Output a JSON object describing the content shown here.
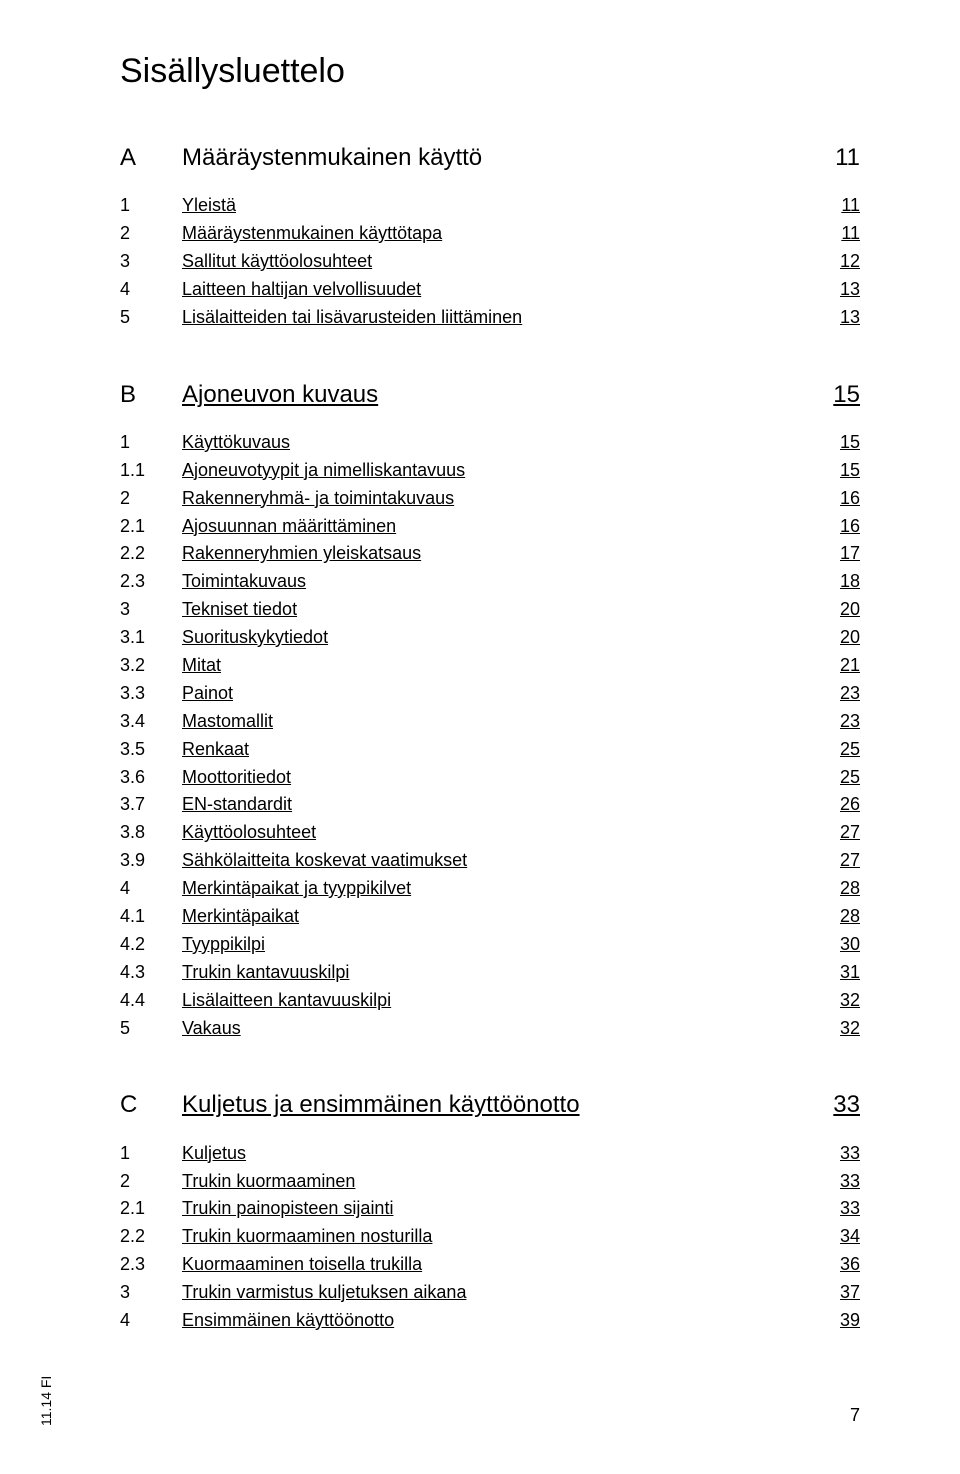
{
  "title": "Sisällysluettelo",
  "footer_rot": "11.14 FI",
  "footer_page": "7",
  "colors": {
    "text": "#000000",
    "bg": "#ffffff"
  },
  "typography": {
    "title_fontsize": 34,
    "heading_fontsize": 24,
    "row_fontsize": 18,
    "footer_fontsize": 14
  },
  "sections": [
    {
      "letter": "A",
      "label": "Määräystenmukainen käyttö",
      "page": "11",
      "linked": false,
      "items": [
        {
          "num": "1",
          "label": "Yleistä",
          "page": "11",
          "link": true
        },
        {
          "num": "2",
          "label": "Määräystenmukainen käyttötapa",
          "page": "11",
          "link": true
        },
        {
          "num": "3",
          "label": "Sallitut käyttöolosuhteet",
          "page": "12",
          "link": true
        },
        {
          "num": "4",
          "label": "Laitteen haltijan velvollisuudet",
          "page": "13",
          "link": true
        },
        {
          "num": "5",
          "label": "Lisälaitteiden tai lisävarusteiden liittäminen",
          "page": "13",
          "link": true
        }
      ]
    },
    {
      "letter": "B",
      "label": "Ajoneuvon kuvaus",
      "page": "15",
      "linked": true,
      "items": [
        {
          "num": "1",
          "label": "Käyttökuvaus",
          "page": "15",
          "link": true
        },
        {
          "num": "1.1",
          "label": "Ajoneuvotyypit ja nimelliskantavuus",
          "page": "15",
          "link": true
        },
        {
          "num": "2",
          "label": "Rakenneryhmä- ja toimintakuvaus",
          "page": "16",
          "link": true
        },
        {
          "num": "2.1",
          "label": "Ajosuunnan määrittäminen",
          "page": "16",
          "link": true
        },
        {
          "num": "2.2",
          "label": "Rakenneryhmien yleiskatsaus",
          "page": "17",
          "link": true
        },
        {
          "num": "2.3",
          "label": "Toimintakuvaus",
          "page": "18",
          "link": true
        },
        {
          "num": "3",
          "label": "Tekniset tiedot",
          "page": "20",
          "link": true
        },
        {
          "num": "3.1",
          "label": "Suorituskykytiedot",
          "page": "20",
          "link": true
        },
        {
          "num": "3.2",
          "label": "Mitat",
          "page": "21",
          "link": true
        },
        {
          "num": "3.3",
          "label": "Painot",
          "page": "23",
          "link": true
        },
        {
          "num": "3.4",
          "label": "Mastomallit",
          "page": "23",
          "link": true
        },
        {
          "num": "3.5",
          "label": "Renkaat",
          "page": "25",
          "link": true
        },
        {
          "num": "3.6",
          "label": "Moottoritiedot",
          "page": "25",
          "link": true
        },
        {
          "num": "3.7",
          "label": "EN-standardit",
          "page": "26",
          "link": true
        },
        {
          "num": "3.8",
          "label": "Käyttöolosuhteet",
          "page": "27",
          "link": true
        },
        {
          "num": "3.9",
          "label": "Sähkölaitteita koskevat vaatimukset",
          "page": "27",
          "link": true
        },
        {
          "num": "4",
          "label": "Merkintäpaikat ja tyyppikilvet",
          "page": "28",
          "link": true
        },
        {
          "num": "4.1",
          "label": "Merkintäpaikat",
          "page": "28",
          "link": true
        },
        {
          "num": "4.2",
          "label": "Tyyppikilpi",
          "page": "30",
          "link": true
        },
        {
          "num": "4.3",
          "label": "Trukin kantavuuskilpi",
          "page": "31",
          "link": true
        },
        {
          "num": "4.4",
          "label": "Lisälaitteen kantavuuskilpi",
          "page": "32",
          "link": true
        },
        {
          "num": "5",
          "label": "Vakaus",
          "page": "32",
          "link": true
        }
      ]
    },
    {
      "letter": "C",
      "label": "Kuljetus ja ensimmäinen käyttöönotto",
      "page": "33",
      "linked": true,
      "items": [
        {
          "num": "1",
          "label": "Kuljetus",
          "page": "33",
          "link": true
        },
        {
          "num": "2",
          "label": "Trukin kuormaaminen",
          "page": "33",
          "link": true
        },
        {
          "num": "2.1",
          "label": "Trukin painopisteen sijainti",
          "page": "33",
          "link": true
        },
        {
          "num": "2.2",
          "label": "Trukin kuormaaminen nosturilla",
          "page": "34",
          "link": true
        },
        {
          "num": "2.3",
          "label": "Kuormaaminen toisella trukilla",
          "page": "36",
          "link": true
        },
        {
          "num": "3",
          "label": "Trukin varmistus kuljetuksen aikana",
          "page": "37",
          "link": true
        },
        {
          "num": "4",
          "label": "Ensimmäinen käyttöönotto",
          "page": "39",
          "link": true
        }
      ]
    }
  ]
}
